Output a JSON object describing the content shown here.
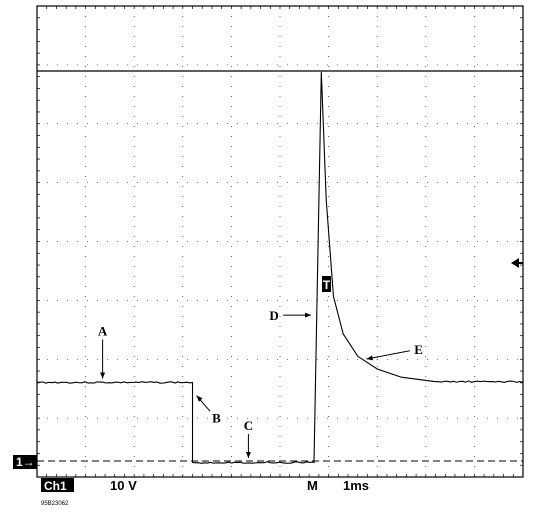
{
  "chart_data": {
    "type": "line",
    "title": "",
    "xlabel": "",
    "ylabel": "",
    "grid": true,
    "x_divisions": 10,
    "y_divisions": 8,
    "x_units": "ms",
    "y_units": "V",
    "time_per_div_ms": 1,
    "volts_per_div": 10,
    "series": [
      {
        "x": [
          0.0,
          3.2,
          3.2,
          5.7,
          5.7,
          5.85,
          5.95,
          6.1,
          6.3,
          6.6,
          7.0,
          7.5,
          8.2,
          10.0
        ],
        "y": [
          10.5,
          10.5,
          -0.2,
          -0.2,
          0.0,
          52.0,
          35.0,
          22.0,
          17.0,
          14.0,
          12.3,
          11.2,
          10.6,
          10.5
        ]
      }
    ],
    "annotations": [
      {
        "label": "A",
        "x": 1.35,
        "y": 10.5
      },
      {
        "label": "B",
        "x": 3.2,
        "y": 9.0
      },
      {
        "label": "C",
        "x": 4.35,
        "y": 0.0
      },
      {
        "label": "D",
        "x": 5.7,
        "y": 19.5
      },
      {
        "label": "E",
        "x": 6.7,
        "y": 13.5
      }
    ]
  },
  "scope": {
    "channel_label": "Ch1",
    "volts_per_div": "10 V",
    "time_mode": "M",
    "time_per_div": "1ms",
    "ground_marker": "1→",
    "trigger_marker": "T",
    "figure_id": "95B23062"
  }
}
